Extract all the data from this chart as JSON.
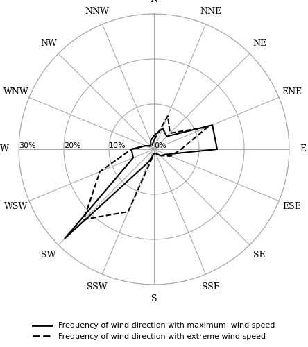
{
  "directions": [
    "N",
    "NNE",
    "NE",
    "ENE",
    "E",
    "ESE",
    "SE",
    "SSE",
    "S",
    "SSW",
    "SW",
    "WSW",
    "W",
    "WNW",
    "NW",
    "NNW"
  ],
  "max_wind": [
    3,
    5,
    4,
    14,
    14,
    3,
    2,
    1,
    1,
    3,
    28,
    5,
    5,
    2,
    1,
    2
  ],
  "extreme_wind": [
    2,
    8,
    5,
    13,
    6,
    4,
    2,
    1,
    1,
    15,
    22,
    13,
    5,
    2,
    1,
    1
  ],
  "r_max": 30,
  "r_ticks": [
    0,
    10,
    20,
    30
  ],
  "r_tick_labels": [
    "0%",
    "10%",
    "20%",
    "30%"
  ],
  "background_color": "#ffffff",
  "grid_color": "#aaaaaa",
  "line_color_max": "#000000",
  "line_color_extreme": "#000000",
  "legend_max": "Frequency of wind direction with maximum  wind speed",
  "legend_extreme": "Frequency of wind direction with extreme wind speed",
  "figsize": [
    4.44,
    5.0
  ],
  "dpi": 100
}
